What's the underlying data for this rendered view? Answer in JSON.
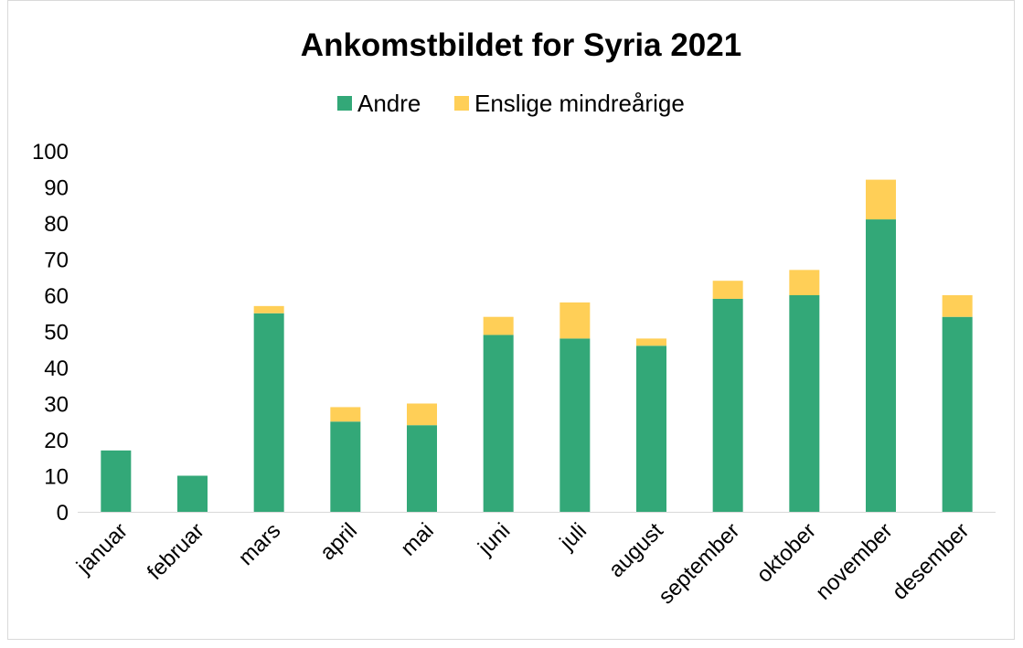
{
  "chart_data": {
    "type": "bar",
    "stacked": true,
    "title": "Ankomstbildet for Syria 2021",
    "xlabel": "",
    "ylabel": "",
    "ylim": [
      0,
      100
    ],
    "yticks": [
      0,
      10,
      20,
      30,
      40,
      50,
      60,
      70,
      80,
      90,
      100
    ],
    "grid": false,
    "legend_position": "top",
    "categories": [
      "januar",
      "februar",
      "mars",
      "april",
      "mai",
      "juni",
      "juli",
      "august",
      "september",
      "oktober",
      "november",
      "desember"
    ],
    "series": [
      {
        "name": "Andre",
        "color": "#33a878",
        "values": [
          17,
          10,
          55,
          25,
          24,
          49,
          48,
          46,
          59,
          60,
          81,
          54
        ]
      },
      {
        "name": "Enslige mindreårige",
        "color": "#ffcf57",
        "values": [
          0,
          0,
          2,
          4,
          6,
          5,
          10,
          2,
          5,
          7,
          11,
          6
        ]
      }
    ]
  }
}
